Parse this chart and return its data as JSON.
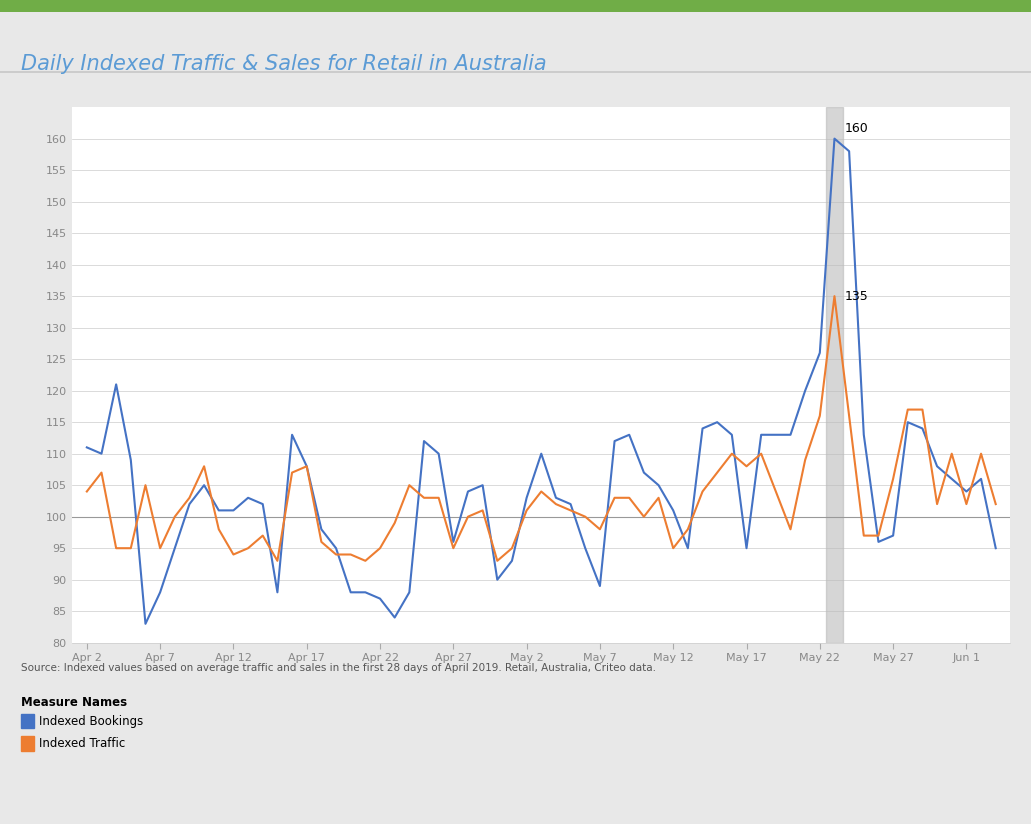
{
  "title": "Daily Indexed Traffic & Sales for Retail in Australia",
  "title_color": "#5B9BD5",
  "title_fontsize": 15,
  "source_text": "Source: Indexed values based on average traffic and sales in the first 28 days of April 2019. Retail, Australia, Criteo data.",
  "legend_title": "Measure Names",
  "legend_entries": [
    "Indexed Bookings",
    "Indexed Traffic"
  ],
  "legend_colors": [
    "#4472C4",
    "#ED7D31"
  ],
  "background_color": "#E8E8E8",
  "plot_background": "#FFFFFF",
  "grid_color": "#CCCCCC",
  "highlight_color": "#BBBBBB",
  "highlight_alpha": 0.6,
  "ylim": [
    80,
    165
  ],
  "yticks": [
    80,
    85,
    90,
    95,
    100,
    105,
    110,
    115,
    120,
    125,
    130,
    135,
    140,
    145,
    150,
    155,
    160
  ],
  "x_labels": [
    "Apr 2",
    "Apr 7",
    "Apr 12",
    "Apr 17",
    "Apr 22",
    "Apr 27",
    "May 2",
    "May 7",
    "May 12",
    "May 17",
    "May 22",
    "May 27",
    "Jun 1"
  ],
  "x_tick_positions": [
    0,
    5,
    10,
    15,
    20,
    25,
    30,
    35,
    40,
    45,
    50,
    55,
    60
  ],
  "highlight_label_blue": "160",
  "highlight_label_orange": "135",
  "blue_line_color": "#4472C4",
  "orange_line_color": "#ED7D31",
  "hline_y": 100,
  "hline_color": "#999999",
  "top_bar_color": "#70AD47",
  "blue_data": [
    111,
    110,
    121,
    109,
    83,
    88,
    95,
    102,
    105,
    101,
    101,
    103,
    102,
    88,
    113,
    108,
    98,
    95,
    88,
    88,
    87,
    84,
    88,
    112,
    110,
    96,
    104,
    105,
    90,
    93,
    103,
    110,
    103,
    102,
    95,
    89,
    112,
    113,
    107,
    105,
    101,
    95,
    114,
    115,
    113,
    95,
    113,
    113,
    113,
    120,
    126,
    160,
    158,
    113,
    96,
    97,
    115,
    114,
    108,
    106,
    104,
    106,
    95
  ],
  "orange_data": [
    104,
    107,
    95,
    95,
    105,
    95,
    100,
    103,
    108,
    98,
    94,
    95,
    97,
    93,
    107,
    108,
    96,
    94,
    94,
    93,
    95,
    99,
    105,
    103,
    103,
    95,
    100,
    101,
    93,
    95,
    101,
    104,
    102,
    101,
    100,
    98,
    103,
    103,
    100,
    103,
    95,
    98,
    104,
    107,
    110,
    108,
    110,
    104,
    98,
    109,
    116,
    135,
    116,
    97,
    97,
    106,
    117,
    117,
    102,
    110,
    102,
    110,
    102
  ]
}
